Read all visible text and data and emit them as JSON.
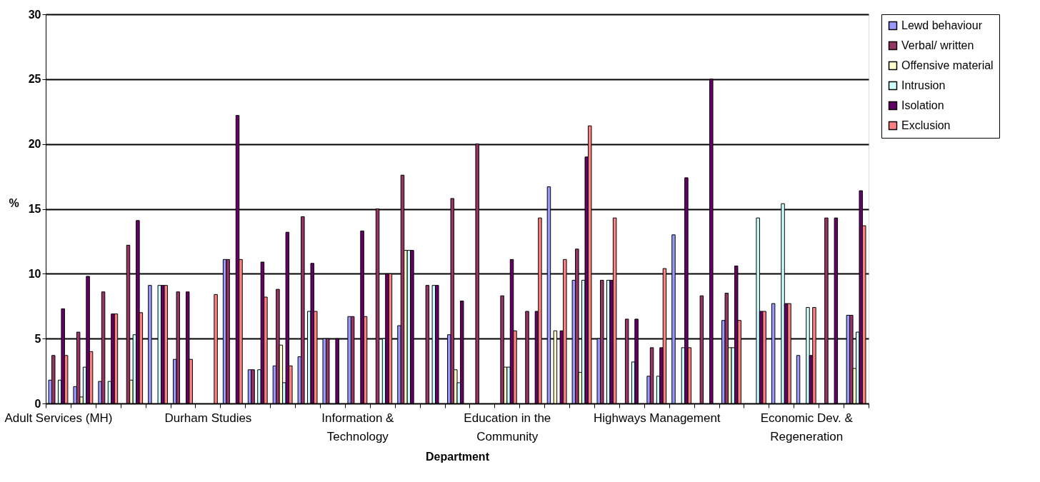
{
  "chart_data": {
    "type": "bar",
    "xlabel": "Department",
    "ylabel": "%",
    "categories": [
      "Adult Services (MH)",
      null,
      null,
      null,
      null,
      null,
      "Durham Studies",
      null,
      null,
      null,
      null,
      null,
      "Information & Technology",
      null,
      null,
      null,
      null,
      null,
      "Education in the Community",
      null,
      null,
      null,
      null,
      null,
      "Highways Management",
      null,
      null,
      null,
      null,
      null,
      "Economic Dev. & Regeneration",
      null,
      null
    ],
    "series": [
      {
        "name": "Lewd behaviour",
        "color": "#9999ff",
        "values": [
          1.8,
          1.3,
          1.7,
          null,
          9.1,
          3.4,
          null,
          11.1,
          2.6,
          2.9,
          3.6,
          5.0,
          6.7,
          null,
          6.0,
          null,
          5.3,
          null,
          null,
          null,
          16.7,
          9.5,
          5.0,
          null,
          2.1,
          13.0,
          null,
          6.4,
          null,
          7.7,
          3.7,
          null,
          6.8
        ]
      },
      {
        "name": "Verbal/ written",
        "color": "#993366",
        "values": [
          3.7,
          5.5,
          8.6,
          12.2,
          null,
          8.6,
          null,
          11.1,
          2.6,
          8.8,
          14.4,
          5.0,
          6.7,
          15.0,
          17.6,
          9.1,
          15.8,
          20.0,
          8.3,
          7.1,
          null,
          11.9,
          9.5,
          6.5,
          4.3,
          null,
          8.3,
          8.5,
          null,
          null,
          null,
          14.3,
          6.8
        ]
      },
      {
        "name": "Offensive material",
        "color": "#ffffcc",
        "values": [
          null,
          0.5,
          null,
          1.8,
          null,
          null,
          null,
          null,
          null,
          4.5,
          null,
          null,
          null,
          null,
          11.8,
          null,
          2.6,
          null,
          2.8,
          null,
          5.6,
          2.4,
          null,
          null,
          null,
          null,
          null,
          4.3,
          null,
          null,
          null,
          null,
          2.7
        ]
      },
      {
        "name": "Intrusion",
        "color": "#ccffff",
        "values": [
          1.8,
          2.8,
          1.7,
          5.3,
          9.1,
          null,
          null,
          null,
          2.6,
          1.6,
          7.1,
          null,
          null,
          5.0,
          11.8,
          9.1,
          1.6,
          null,
          2.8,
          null,
          null,
          9.5,
          9.5,
          3.2,
          2.1,
          4.3,
          null,
          4.3,
          14.3,
          15.4,
          7.4,
          null,
          5.5
        ]
      },
      {
        "name": "Isolation",
        "color": "#660066",
        "values": [
          7.3,
          9.8,
          6.9,
          14.1,
          9.1,
          8.6,
          null,
          22.2,
          10.9,
          13.2,
          10.8,
          5.0,
          13.3,
          10.0,
          11.8,
          9.1,
          7.9,
          null,
          11.1,
          7.1,
          5.6,
          19.0,
          9.5,
          6.5,
          4.3,
          17.4,
          25.0,
          10.6,
          7.1,
          7.7,
          3.7,
          14.3,
          16.4
        ]
      },
      {
        "name": "Exclusion",
        "color": "#ff8080",
        "values": [
          3.7,
          4.0,
          6.9,
          7.0,
          9.1,
          3.4,
          8.4,
          11.1,
          8.2,
          2.9,
          7.1,
          null,
          6.7,
          10.0,
          null,
          null,
          null,
          null,
          5.6,
          14.3,
          11.1,
          21.4,
          14.3,
          null,
          10.4,
          4.3,
          null,
          6.4,
          7.1,
          7.7,
          7.4,
          null,
          13.7
        ]
      }
    ],
    "ylim": [
      0,
      30
    ],
    "yticks": [
      0,
      5,
      10,
      15,
      20,
      25,
      30
    ],
    "grid": "y",
    "legend": "right"
  }
}
